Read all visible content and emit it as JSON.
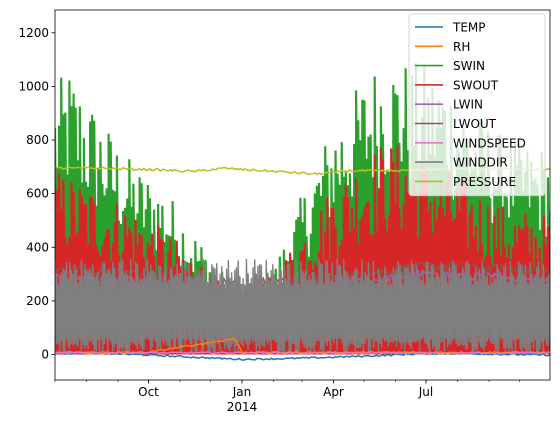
{
  "chart_data": {
    "type": "line",
    "title": "",
    "xlabel": "",
    "ylabel": "",
    "x_range": [
      "2013-07-01",
      "2014-10-31"
    ],
    "x_ticks": [
      {
        "date": "2013-10-01",
        "label": "Oct"
      },
      {
        "date": "2014-01-01",
        "label": "Jan",
        "sublabel": "2014"
      },
      {
        "date": "2014-04-01",
        "label": "Apr"
      },
      {
        "date": "2014-07-01",
        "label": "Jul"
      }
    ],
    "y_ticks": [
      0,
      200,
      400,
      600,
      800,
      1000,
      1200
    ],
    "ylim": [
      -95,
      1285
    ],
    "grid": false,
    "legend_position": "top-right",
    "series": [
      {
        "name": "TEMP",
        "color": "#1f77b4",
        "points": [
          [
            "2013-07-01",
            4
          ],
          [
            "2013-08-15",
            5
          ],
          [
            "2013-10-01",
            -2
          ],
          [
            "2013-11-15",
            -10
          ],
          [
            "2014-01-01",
            -18
          ],
          [
            "2014-02-15",
            -15
          ],
          [
            "2014-04-01",
            -10
          ],
          [
            "2014-05-15",
            -4
          ],
          [
            "2014-07-01",
            4
          ],
          [
            "2014-08-15",
            3
          ],
          [
            "2014-10-31",
            -2
          ]
        ]
      },
      {
        "name": "RH",
        "color": "#ff7f0e",
        "points": [
          [
            "2013-07-01",
            8
          ],
          [
            "2013-10-01",
            8
          ],
          [
            "2013-12-25",
            60
          ],
          [
            "2014-01-01",
            8
          ],
          [
            "2014-04-01",
            8
          ],
          [
            "2014-07-01",
            8
          ],
          [
            "2014-10-31",
            8
          ]
        ]
      },
      {
        "name": "SWIN",
        "color": "#2ca02c",
        "envelope_max": [
          [
            "2013-07-01",
            1000
          ],
          [
            "2013-07-15",
            1080
          ],
          [
            "2013-08-15",
            900
          ],
          [
            "2013-09-15",
            720
          ],
          [
            "2013-10-15",
            640
          ],
          [
            "2013-11-15",
            470
          ],
          [
            "2013-12-15",
            300
          ],
          [
            "2014-01-01",
            250
          ],
          [
            "2014-02-01",
            330
          ],
          [
            "2014-03-01",
            600
          ],
          [
            "2014-04-01",
            880
          ],
          [
            "2014-05-01",
            1040
          ],
          [
            "2014-05-20",
            1135
          ],
          [
            "2014-06-15",
            1100
          ],
          [
            "2014-07-15",
            1080
          ],
          [
            "2014-08-15",
            940
          ],
          [
            "2014-09-15",
            820
          ],
          [
            "2014-10-31",
            780
          ]
        ],
        "envelope_min": 0
      },
      {
        "name": "SWOUT",
        "color": "#d62728",
        "envelope_max": [
          [
            "2013-07-01",
            700
          ],
          [
            "2013-08-15",
            620
          ],
          [
            "2013-09-15",
            560
          ],
          [
            "2013-10-15",
            470
          ],
          [
            "2013-11-15",
            380
          ],
          [
            "2013-12-15",
            250
          ],
          [
            "2014-01-01",
            220
          ],
          [
            "2014-02-01",
            300
          ],
          [
            "2014-03-01",
            480
          ],
          [
            "2014-04-01",
            640
          ],
          [
            "2014-05-01",
            760
          ],
          [
            "2014-05-20",
            800
          ],
          [
            "2014-06-15",
            790
          ],
          [
            "2014-07-15",
            720
          ],
          [
            "2014-08-15",
            640
          ],
          [
            "2014-09-15",
            560
          ],
          [
            "2014-10-31",
            520
          ]
        ],
        "envelope_min": 0
      },
      {
        "name": "LWIN",
        "color": "#9467bd",
        "points": [
          [
            "2013-07-01",
            290
          ],
          [
            "2013-10-01",
            270
          ],
          [
            "2014-01-01",
            230
          ],
          [
            "2014-04-01",
            260
          ],
          [
            "2014-07-01",
            300
          ],
          [
            "2014-10-31",
            280
          ]
        ]
      },
      {
        "name": "LWOUT",
        "color": "#8c564b",
        "points": [
          [
            "2013-07-01",
            320
          ],
          [
            "2013-10-01",
            300
          ],
          [
            "2014-01-01",
            260
          ],
          [
            "2014-04-01",
            290
          ],
          [
            "2014-07-01",
            330
          ],
          [
            "2014-10-31",
            310
          ]
        ]
      },
      {
        "name": "WINDSPEED",
        "color": "#e377c2",
        "points": [
          [
            "2013-07-01",
            5
          ],
          [
            "2013-10-01",
            6
          ],
          [
            "2014-01-01",
            7
          ],
          [
            "2014-04-01",
            5
          ],
          [
            "2014-07-01",
            5
          ],
          [
            "2014-10-31",
            6
          ]
        ]
      },
      {
        "name": "WINDDIR",
        "color": "#7f7f7f",
        "range": [
          0,
          360
        ]
      },
      {
        "name": "PRESSURE",
        "color": "#bcbd22",
        "points": [
          [
            "2013-07-01",
            695
          ],
          [
            "2013-08-15",
            695
          ],
          [
            "2013-10-01",
            690
          ],
          [
            "2013-11-15",
            683
          ],
          [
            "2013-12-15",
            695
          ],
          [
            "2014-01-01",
            690
          ],
          [
            "2014-02-15",
            680
          ],
          [
            "2014-03-15",
            673
          ],
          [
            "2014-04-15",
            685
          ],
          [
            "2014-06-01",
            685
          ],
          [
            "2014-07-01",
            690
          ],
          [
            "2014-08-15",
            692
          ],
          [
            "2014-10-31",
            690
          ]
        ]
      }
    ]
  }
}
